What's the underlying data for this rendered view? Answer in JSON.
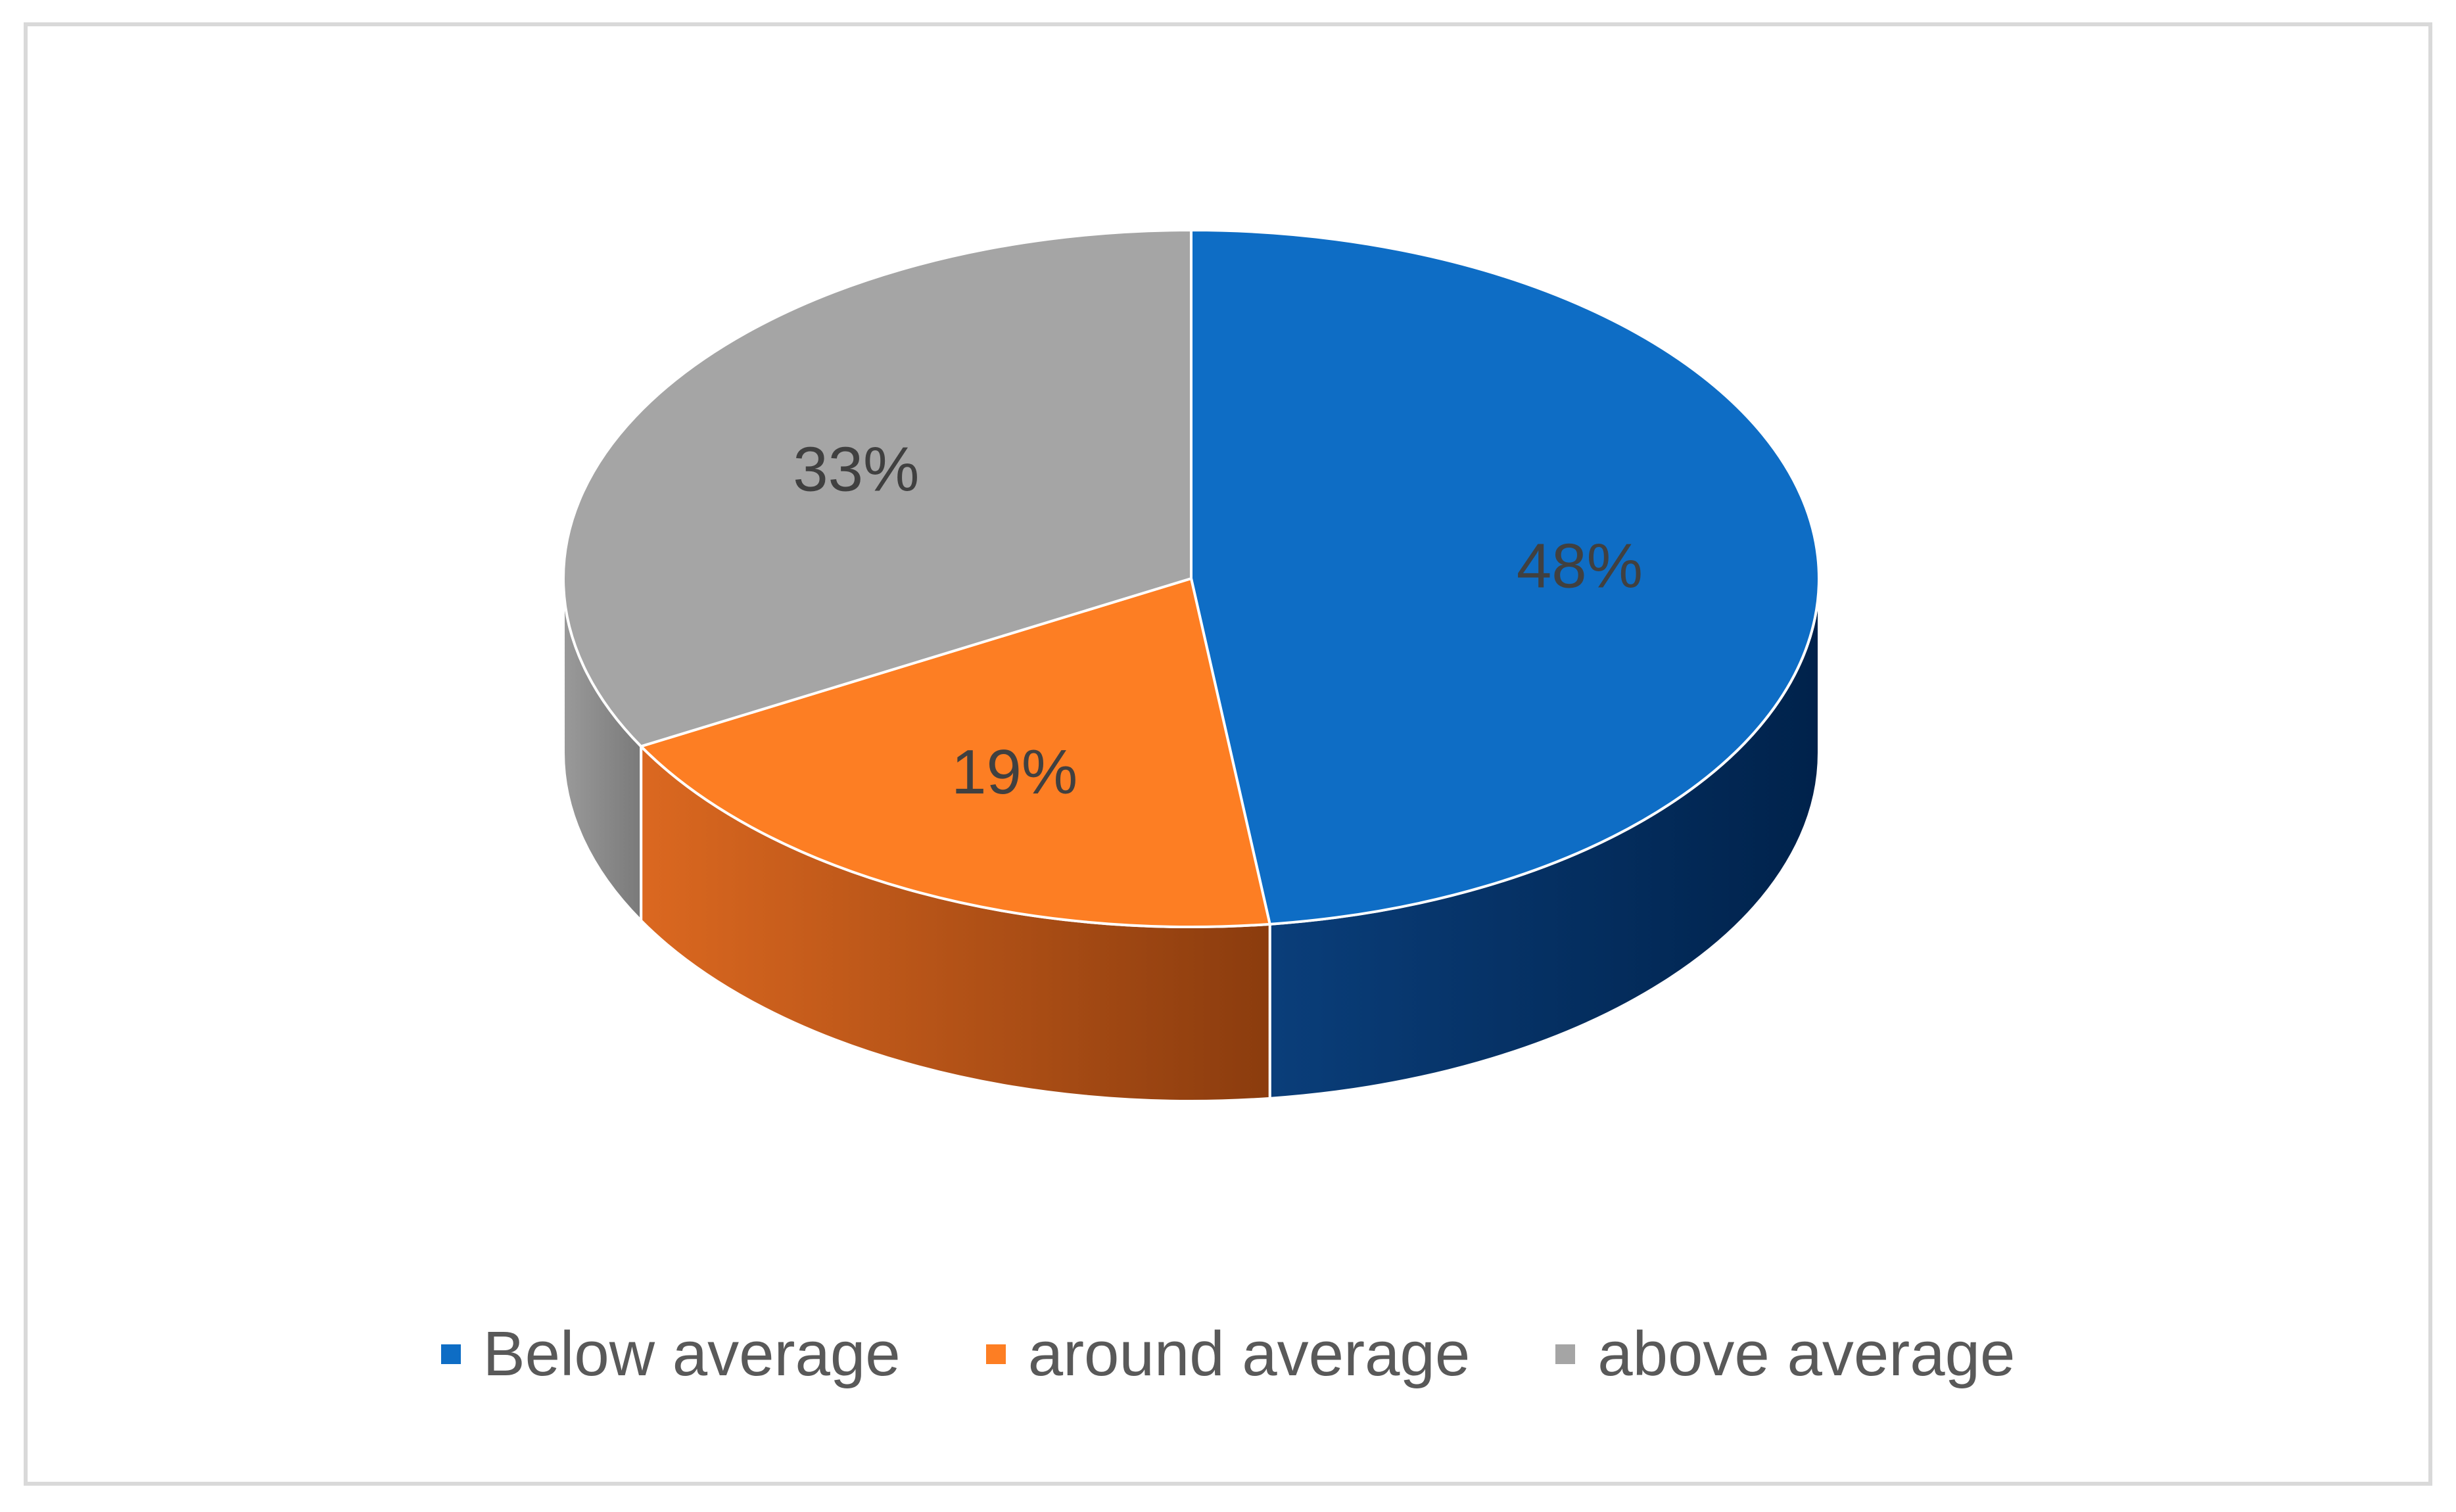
{
  "chart_data": {
    "type": "pie",
    "three_d": true,
    "categories": [
      "Below average",
      "around average",
      "above average"
    ],
    "values": [
      48,
      19,
      33
    ],
    "data_labels": [
      "48%",
      "19%",
      "33%"
    ],
    "colors": [
      "#0E6DC5",
      "#FD7E23",
      "#A5A5A5"
    ],
    "side_colors": {
      "Below average": [
        "#0A3E7A",
        "#00224B"
      ],
      "around average": [
        "#DB6820",
        "#8B3C0E"
      ],
      "above average": [
        "#9A9A9A",
        "#7A7A7A"
      ]
    },
    "legend_position": "bottom",
    "title": ""
  }
}
